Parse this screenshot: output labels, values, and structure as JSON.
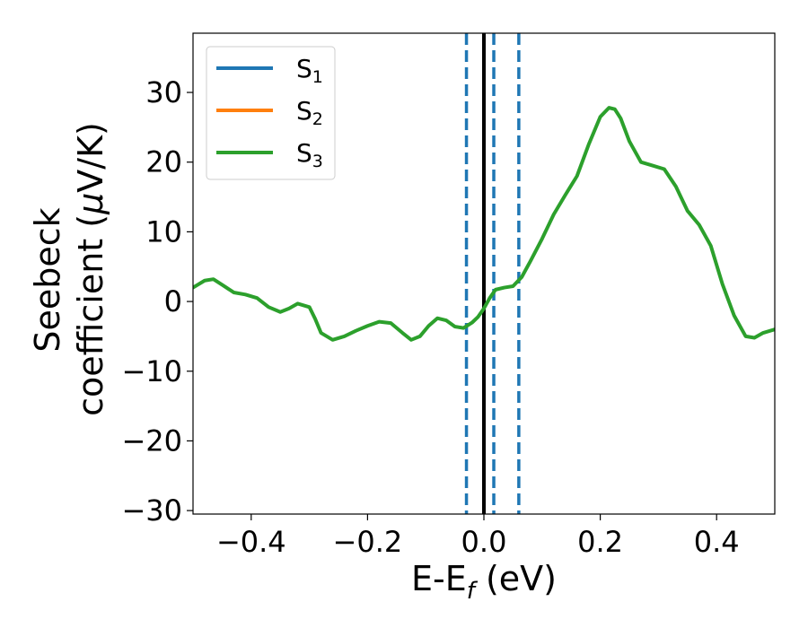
{
  "chart_data": {
    "type": "line",
    "title": "",
    "xlabel": {
      "main": "E-E",
      "sub": "f",
      "suffix": " (eV)"
    },
    "ylabel": {
      "line1": "Seebeck",
      "line2_pre": "coefficient  (",
      "mu": "μ",
      "line2_post": "V/K)"
    },
    "xlim": [
      -0.5,
      0.5
    ],
    "ylim": [
      -30.5,
      38.5
    ],
    "xticks": [
      -0.4,
      -0.2,
      0.0,
      0.2,
      0.4
    ],
    "xtick_labels": [
      "−0.4",
      "−0.2",
      "0.0",
      "0.2",
      "0.4"
    ],
    "yticks": [
      -30,
      -20,
      -10,
      0,
      10,
      20,
      30
    ],
    "ytick_labels": [
      "−30",
      "−20",
      "−10",
      "0",
      "10",
      "20",
      "30"
    ],
    "grid": false,
    "legend_position": "top-left",
    "series": [
      {
        "name": "S",
        "sub": "1",
        "color": "#1f77b4",
        "x": [],
        "y": []
      },
      {
        "name": "S",
        "sub": "2",
        "color": "#ff7f0e",
        "x": [],
        "y": []
      },
      {
        "name": "S",
        "sub": "3",
        "color": "#2ca02c",
        "x": [
          -0.5,
          -0.48,
          -0.465,
          -0.45,
          -0.43,
          -0.41,
          -0.39,
          -0.37,
          -0.35,
          -0.335,
          -0.32,
          -0.3,
          -0.29,
          -0.28,
          -0.26,
          -0.24,
          -0.22,
          -0.2,
          -0.18,
          -0.16,
          -0.14,
          -0.125,
          -0.11,
          -0.095,
          -0.08,
          -0.065,
          -0.05,
          -0.035,
          -0.02,
          -0.01,
          0.0,
          0.01,
          0.02,
          0.035,
          0.05,
          0.065,
          0.08,
          0.1,
          0.12,
          0.14,
          0.16,
          0.18,
          0.2,
          0.215,
          0.225,
          0.235,
          0.25,
          0.27,
          0.29,
          0.31,
          0.33,
          0.35,
          0.37,
          0.39,
          0.41,
          0.43,
          0.45,
          0.465,
          0.48,
          0.5
        ],
        "y": [
          2.0,
          3.0,
          3.2,
          2.4,
          1.3,
          1.0,
          0.5,
          -0.8,
          -1.5,
          -1.0,
          -0.3,
          -0.8,
          -2.5,
          -4.5,
          -5.5,
          -5.0,
          -4.2,
          -3.5,
          -2.9,
          -3.1,
          -4.5,
          -5.5,
          -5.0,
          -3.5,
          -2.4,
          -2.7,
          -3.6,
          -3.8,
          -3.0,
          -2.2,
          -1.0,
          0.5,
          1.7,
          2.0,
          2.2,
          3.5,
          5.8,
          9.0,
          12.5,
          15.3,
          18.0,
          22.5,
          26.5,
          27.8,
          27.6,
          26.3,
          23.0,
          20.0,
          19.5,
          19.0,
          16.5,
          13.0,
          11.0,
          8.0,
          2.5,
          -2.0,
          -5.0,
          -5.2,
          -4.5,
          -4.0
        ]
      }
    ],
    "vlines": [
      {
        "x": -0.03,
        "color": "#1f77b4",
        "style": "dashed"
      },
      {
        "x": 0.0,
        "color": "#000000",
        "style": "solid"
      },
      {
        "x": 0.017,
        "color": "#1f77b4",
        "style": "dashed"
      },
      {
        "x": 0.06,
        "color": "#1f77b4",
        "style": "dashed"
      }
    ]
  }
}
